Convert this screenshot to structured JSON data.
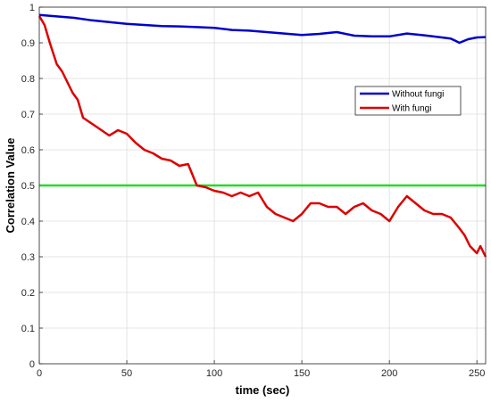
{
  "chart_data": {
    "type": "line",
    "title": "",
    "xlabel": "time (sec)",
    "ylabel": "Correlation Value",
    "xlim": [
      0,
      255
    ],
    "ylim": [
      0,
      1
    ],
    "xticks": [
      0,
      50,
      100,
      150,
      200,
      250
    ],
    "yticks": [
      0,
      0.1,
      0.2,
      0.3,
      0.4,
      0.5,
      0.6,
      0.7,
      0.8,
      0.9,
      1
    ],
    "grid": true,
    "legend_position": "upper-right",
    "series": [
      {
        "name": "Without fungi",
        "color": "#0000CC",
        "x": [
          0,
          10,
          20,
          30,
          40,
          50,
          60,
          70,
          80,
          90,
          100,
          110,
          120,
          130,
          140,
          150,
          160,
          170,
          180,
          190,
          200,
          210,
          220,
          230,
          235,
          238,
          240,
          245,
          250,
          255
        ],
        "y": [
          0.978,
          0.974,
          0.97,
          0.963,
          0.958,
          0.953,
          0.95,
          0.947,
          0.946,
          0.944,
          0.942,
          0.936,
          0.934,
          0.93,
          0.926,
          0.922,
          0.925,
          0.93,
          0.92,
          0.918,
          0.918,
          0.926,
          0.921,
          0.915,
          0.912,
          0.905,
          0.9,
          0.91,
          0.915,
          0.916
        ]
      },
      {
        "name": "With fungi",
        "color": "#DD0000",
        "x": [
          0,
          3,
          6,
          10,
          13,
          16,
          19,
          22,
          25,
          28,
          31,
          34,
          37,
          40,
          45,
          50,
          55,
          60,
          65,
          70,
          75,
          80,
          85,
          90,
          95,
          100,
          105,
          110,
          115,
          120,
          125,
          130,
          135,
          140,
          145,
          150,
          155,
          160,
          165,
          170,
          175,
          180,
          185,
          190,
          195,
          200,
          205,
          210,
          215,
          220,
          225,
          230,
          235,
          240,
          243,
          246,
          250,
          252,
          255
        ],
        "y": [
          0.975,
          0.95,
          0.9,
          0.84,
          0.82,
          0.79,
          0.76,
          0.74,
          0.69,
          0.68,
          0.67,
          0.66,
          0.65,
          0.64,
          0.655,
          0.645,
          0.62,
          0.6,
          0.59,
          0.575,
          0.57,
          0.555,
          0.56,
          0.5,
          0.495,
          0.485,
          0.48,
          0.47,
          0.48,
          0.47,
          0.48,
          0.44,
          0.42,
          0.41,
          0.4,
          0.42,
          0.45,
          0.45,
          0.44,
          0.44,
          0.42,
          0.44,
          0.45,
          0.43,
          0.42,
          0.4,
          0.44,
          0.47,
          0.45,
          0.43,
          0.42,
          0.42,
          0.41,
          0.38,
          0.36,
          0.33,
          0.31,
          0.33,
          0.3
        ]
      },
      {
        "name": "",
        "color": "#22DD22",
        "x": [
          0,
          255
        ],
        "y": [
          0.5,
          0.5
        ]
      }
    ]
  }
}
